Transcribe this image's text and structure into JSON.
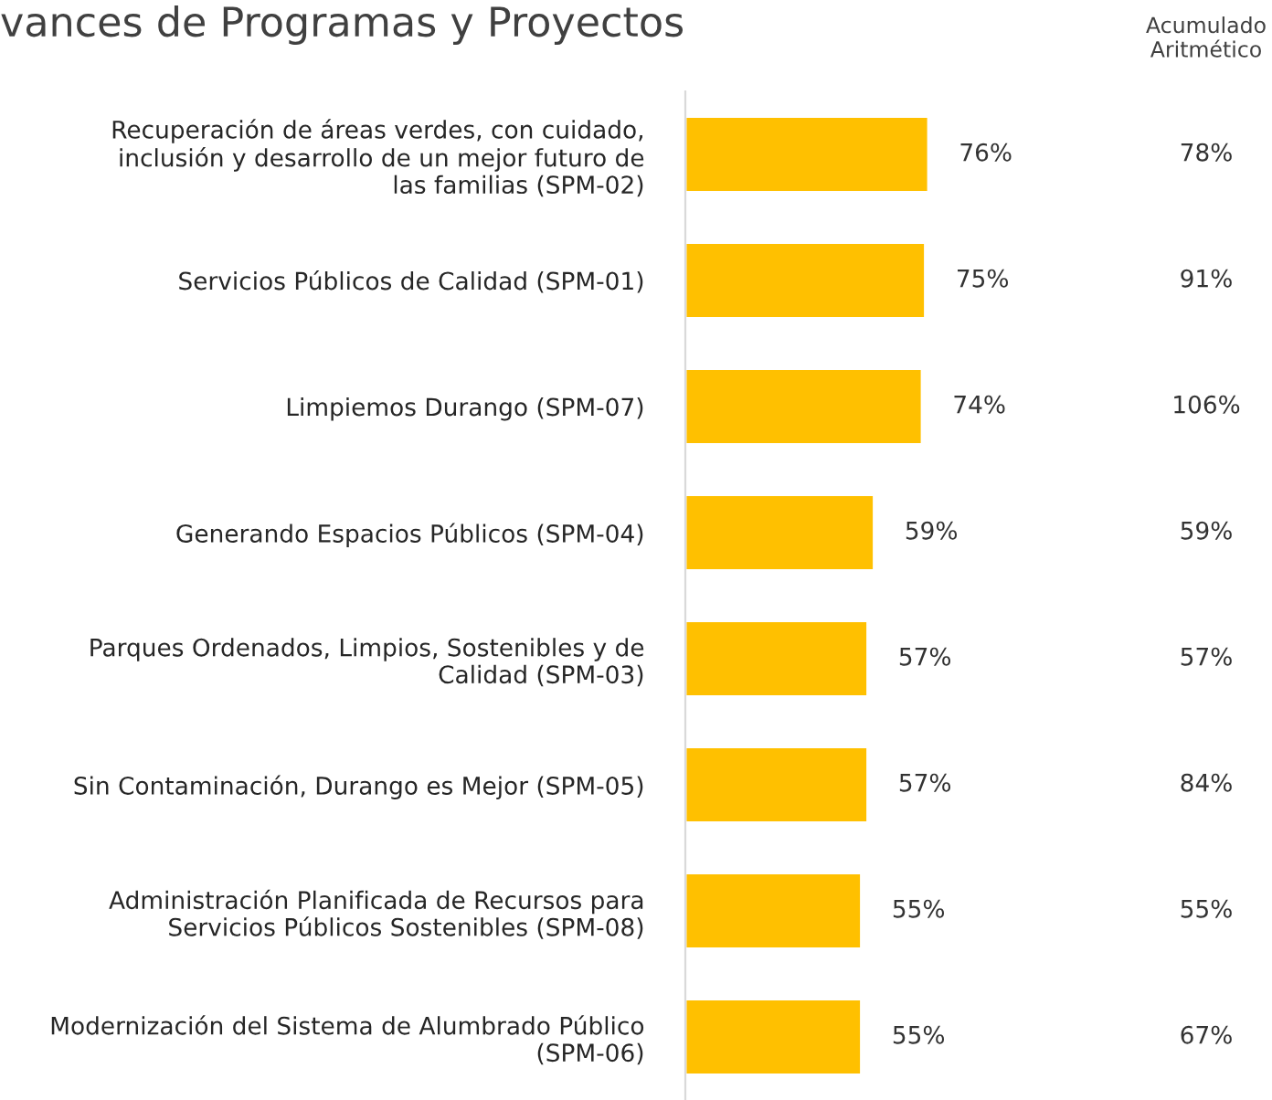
{
  "chart_data": {
    "type": "bar",
    "orientation": "horizontal",
    "title": "vances de Programas y Proyectos",
    "categories": [
      "Recuperación de áreas verdes, con cuidado, inclusión y desarrollo de un mejor futuro de las familias (SPM-02)",
      "Servicios Públicos de Calidad (SPM-01)",
      "Limpiemos Durango (SPM-07)",
      "Generando Espacios Públicos (SPM-04)",
      "Parques Ordenados, Limpios, Sostenibles y de Calidad (SPM-03)",
      "Sin Contaminación, Durango es Mejor (SPM-05)",
      "Administración Planificada de Recursos para Servicios Públicos Sostenibles (SPM-08)",
      "Modernización del Sistema de Alumbrado Público (SPM-06)"
    ],
    "series": [
      {
        "color": "#ffc000",
        "values": [
          76,
          75,
          74,
          59,
          57,
          57,
          55,
          55
        ],
        "value_labels": [
          "76%",
          "75%",
          "74%",
          "59%",
          "57%",
          "57%",
          "55%",
          "55%"
        ]
      }
    ],
    "annotations": [
      "Acumulado\nAritmético",
      "78%",
      "91%",
      "106%",
      "59%",
      "57%",
      "84%",
      "55%",
      "67%"
    ],
    "tick_labels": "y",
    "grid": false,
    "legend": false
  }
}
